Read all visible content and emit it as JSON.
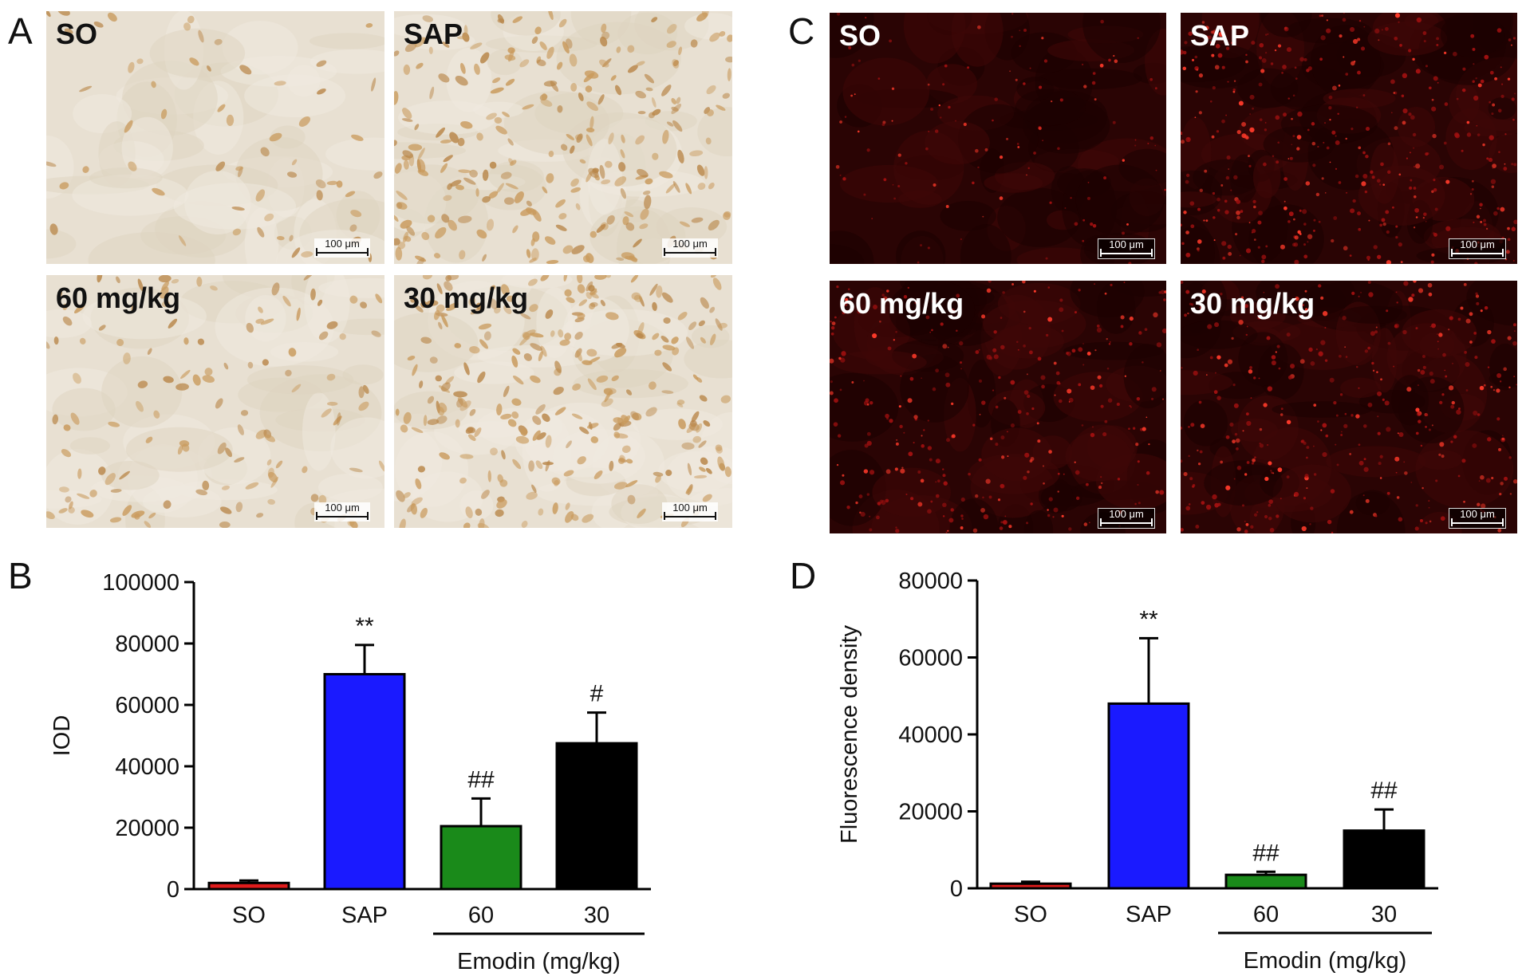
{
  "panels": {
    "A": {
      "letter": "A",
      "images": [
        {
          "label": "SO",
          "scale": "100 μm"
        },
        {
          "label": "SAP",
          "scale": "100 μm"
        },
        {
          "label": "60 mg/kg",
          "scale": "100 μm"
        },
        {
          "label": "30 mg/kg",
          "scale": "100 μm"
        }
      ]
    },
    "C": {
      "letter": "C",
      "images": [
        {
          "label": "SO",
          "scale": "100 μm"
        },
        {
          "label": "SAP",
          "scale": "100 μm"
        },
        {
          "label": "60 mg/kg",
          "scale": "100 μm"
        },
        {
          "label": "30 mg/kg",
          "scale": "100 μm"
        }
      ]
    },
    "B": {
      "letter": "B"
    },
    "D": {
      "letter": "D"
    }
  },
  "chart_data": [
    {
      "id": "B",
      "type": "bar",
      "categories": [
        "SO",
        "SAP",
        "60",
        "30"
      ],
      "values": [
        2000,
        70000,
        20500,
        47500
      ],
      "errors": [
        800,
        9500,
        9000,
        10000
      ],
      "annotations": [
        "",
        "**",
        "##",
        "#"
      ],
      "colors": [
        "#e01c1c",
        "#1a1aff",
        "#1a8a1a",
        "#000000"
      ],
      "ylabel": "IOD",
      "ylim": [
        0,
        100000
      ],
      "yticks": [
        0,
        20000,
        40000,
        60000,
        80000,
        100000
      ],
      "group_label": "Emodin (mg/kg)",
      "group_categories": [
        "60",
        "30"
      ]
    },
    {
      "id": "D",
      "type": "bar",
      "categories": [
        "SO",
        "SAP",
        "60",
        "30"
      ],
      "values": [
        1200,
        48000,
        3500,
        15000
      ],
      "errors": [
        500,
        17000,
        800,
        5500
      ],
      "annotations": [
        "",
        "**",
        "##",
        "##"
      ],
      "colors": [
        "#e01c1c",
        "#1a1aff",
        "#1a8a1a",
        "#000000"
      ],
      "ylabel": "Fluorescence density",
      "ylim": [
        0,
        80000
      ],
      "yticks": [
        0,
        20000,
        40000,
        60000,
        80000
      ],
      "group_label": "Emodin (mg/kg)",
      "group_categories": [
        "60",
        "30"
      ]
    }
  ]
}
